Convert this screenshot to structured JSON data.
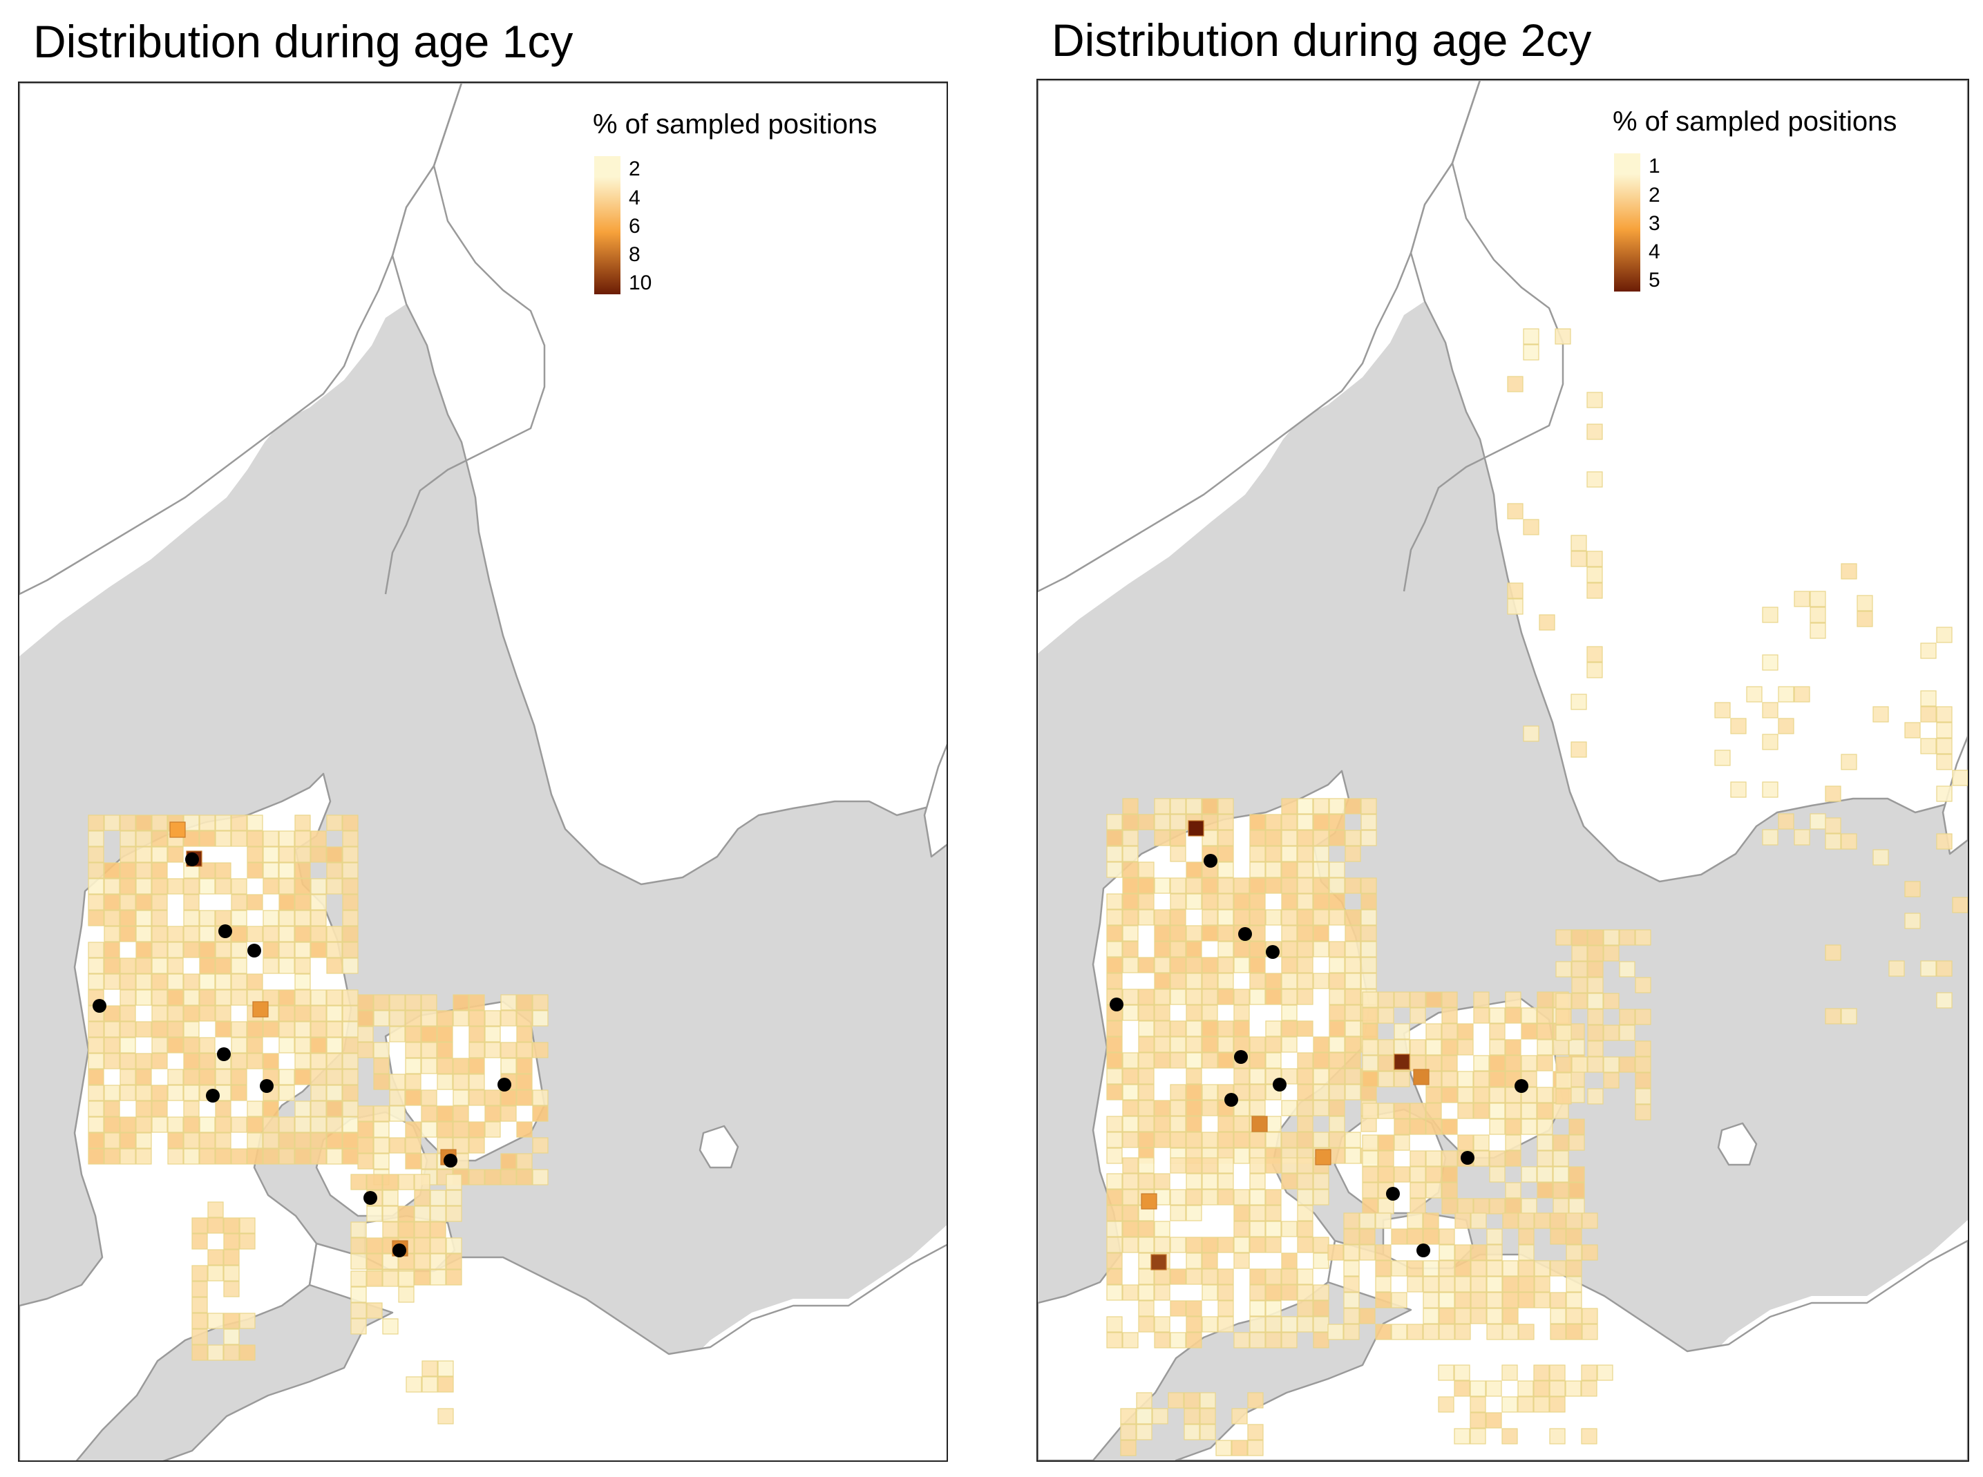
{
  "panels": [
    {
      "title": "Distribution during age 1cy",
      "legend": {
        "title": "% of sampled positions",
        "ticks": [
          "2",
          "4",
          "6",
          "8",
          "10"
        ],
        "scale_min": 0,
        "scale_max": 10.5
      },
      "colors": {
        "low": "#fdf6d2",
        "mid": "#f7a23b",
        "high": "#6b1c05",
        "water": "#d7d7d7",
        "land": "#ffffff",
        "coast": "#9a9a9a"
      },
      "sightings": 11
    },
    {
      "title": "Distribution during age 2cy",
      "legend": {
        "title": "% of sampled positions",
        "ticks": [
          "1",
          "2",
          "3",
          "4",
          "5"
        ],
        "scale_min": 0.5,
        "scale_max": 5.2
      },
      "colors": {
        "low": "#fdf6d2",
        "mid": "#f7a23b",
        "high": "#6b1c05",
        "water": "#d7d7d7",
        "land": "#ffffff",
        "coast": "#9a9a9a"
      },
      "sightings": 11
    }
  ]
}
